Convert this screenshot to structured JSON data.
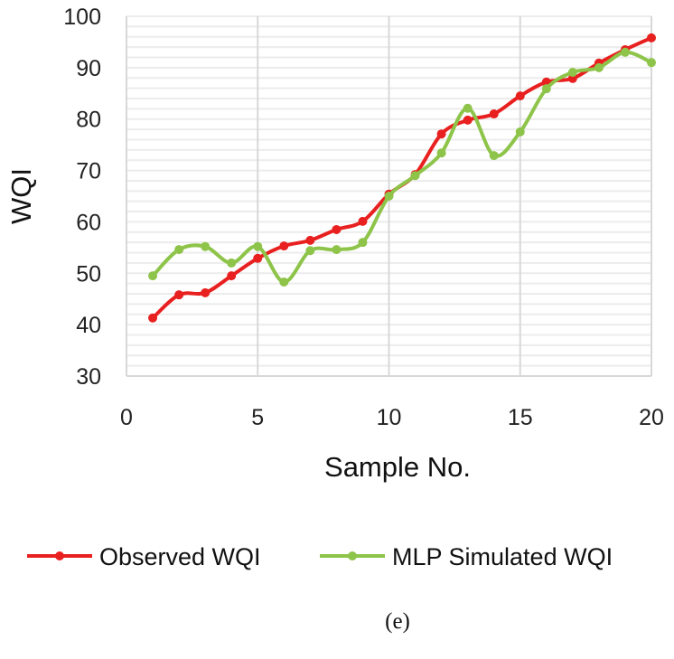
{
  "chart_data": {
    "type": "line",
    "title": "",
    "xlabel": "Sample No.",
    "ylabel": "WQI",
    "xlim": [
      0,
      20
    ],
    "ylim": [
      30,
      100
    ],
    "xticks": [
      0,
      5,
      10,
      15,
      20
    ],
    "yticks": [
      30,
      40,
      50,
      60,
      70,
      80,
      90,
      100
    ],
    "grid": true,
    "legend_position": "bottom",
    "x": [
      1,
      2,
      3,
      4,
      5,
      6,
      7,
      8,
      9,
      10,
      11,
      12,
      13,
      14,
      15,
      16,
      17,
      18,
      19,
      20
    ],
    "series": [
      {
        "name": "Observed WQI",
        "color": "#e8201f",
        "values": [
          41.3,
          45.8,
          46.2,
          49.5,
          52.9,
          55.3,
          56.4,
          58.5,
          60.1,
          65.4,
          69.2,
          77.1,
          79.8,
          81.0,
          84.5,
          87.2,
          87.9,
          90.9,
          93.5,
          95.8
        ]
      },
      {
        "name": "MLP Simulated WQI",
        "color": "#8dc449",
        "values": [
          49.5,
          54.6,
          55.2,
          52.0,
          55.2,
          48.3,
          54.4,
          54.6,
          56.0,
          65.0,
          69.0,
          73.4,
          82.1,
          72.9,
          77.5,
          85.9,
          89.1,
          90.0,
          93.0,
          91.0
        ]
      }
    ],
    "caption": "(e)"
  }
}
